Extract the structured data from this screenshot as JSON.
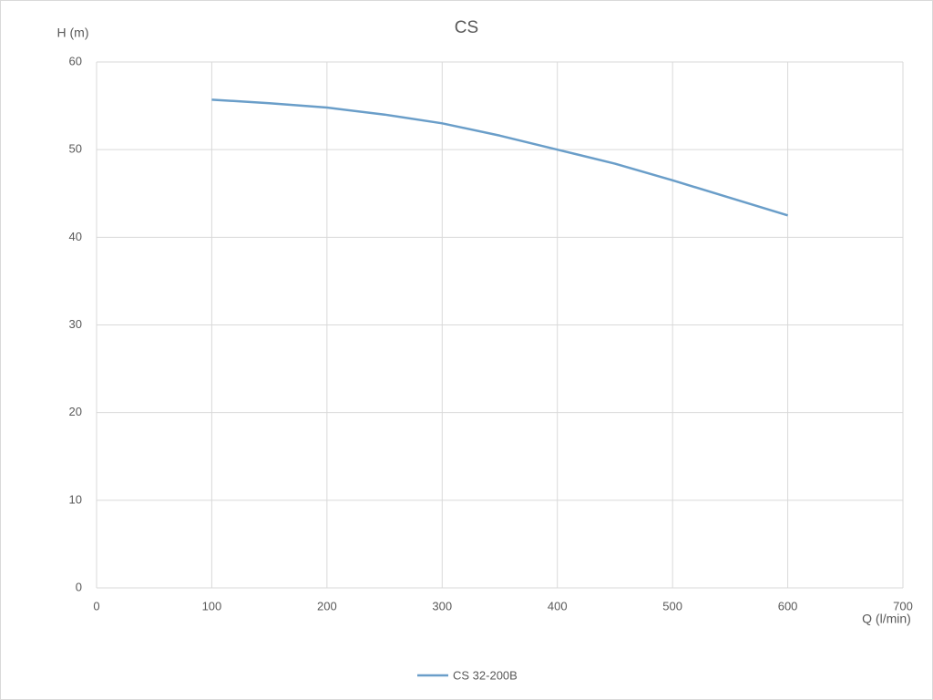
{
  "chart_data": {
    "type": "line",
    "title": "CS",
    "y_label": "H (m)",
    "x_label": "Q (l/min)",
    "x": [
      100,
      150,
      200,
      250,
      300,
      350,
      400,
      450,
      500,
      550,
      600
    ],
    "series": [
      {
        "name": "CS 32-200B",
        "color": "#6a9ec9",
        "values": [
          55.7,
          55.3,
          54.8,
          54.0,
          53.0,
          51.6,
          50.0,
          48.4,
          46.5,
          44.5,
          42.5
        ]
      }
    ],
    "xlim": [
      0,
      700
    ],
    "xticks": [
      0,
      100,
      200,
      300,
      400,
      500,
      600,
      700
    ],
    "ylim": [
      0,
      60
    ],
    "yticks": [
      0,
      10,
      20,
      30,
      40,
      50,
      60
    ],
    "grid": true,
    "legend": "bottom"
  }
}
